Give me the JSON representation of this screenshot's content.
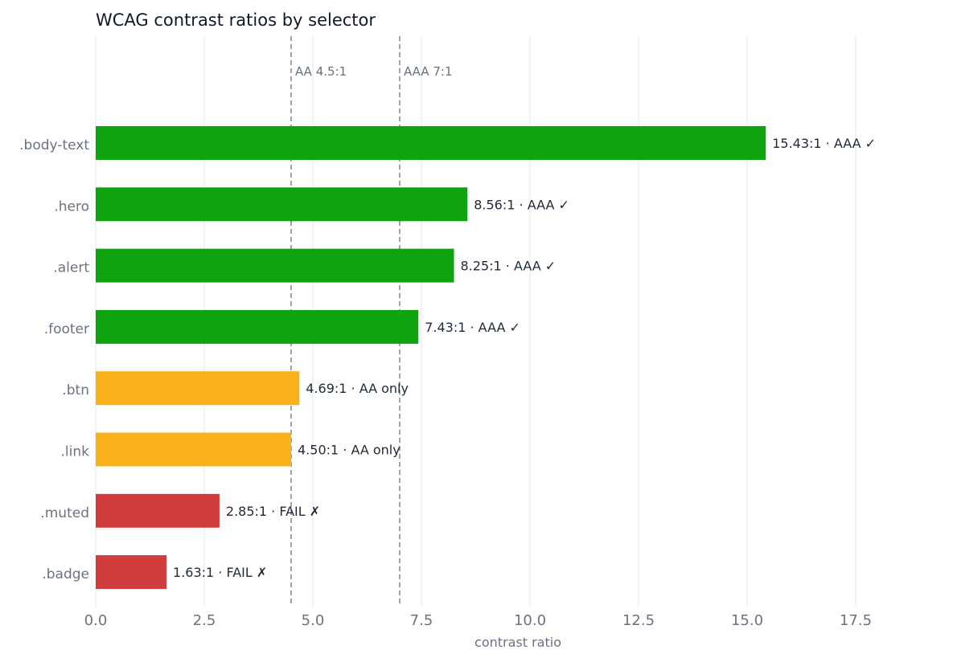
{
  "chart_data": {
    "type": "bar",
    "orientation": "horizontal",
    "title": "WCAG contrast ratios by selector",
    "xlabel": "contrast ratio",
    "ylabel": "",
    "xlim": [
      0,
      19.2
    ],
    "xticks": [
      0,
      2.5,
      5,
      7.5,
      10,
      12.5,
      15,
      17.5
    ],
    "xtick_labels": [
      "0.0",
      "2.5",
      "5.0",
      "7.5",
      "10.0",
      "12.5",
      "15.0",
      "17.5"
    ],
    "grid": "vertical",
    "categories": [
      ".body-text",
      ".hero",
      ".alert",
      ".footer",
      ".btn",
      ".link",
      ".muted",
      ".badge"
    ],
    "values": [
      15.43,
      8.56,
      8.25,
      7.43,
      4.69,
      4.5,
      2.85,
      1.63
    ],
    "data_labels": [
      "15.43:1 · AAA ✓",
      "8.56:1 · AAA ✓",
      "8.25:1 · AAA ✓",
      "7.43:1 · AAA ✓",
      "4.69:1 · AA only",
      "4.50:1 · AA only",
      "2.85:1 · FAIL ✗",
      "1.63:1 · FAIL ✗"
    ],
    "bar_colors": [
      "#0ea30f",
      "#0ea30f",
      "#0ea30f",
      "#0ea30f",
      "#f8b11a",
      "#f8b11a",
      "#d13c3c",
      "#d13c3c"
    ],
    "reference_lines": [
      {
        "value": 4.5,
        "label": "AA 4.5:1"
      },
      {
        "value": 7.0,
        "label": "AAA 7:1"
      }
    ]
  }
}
